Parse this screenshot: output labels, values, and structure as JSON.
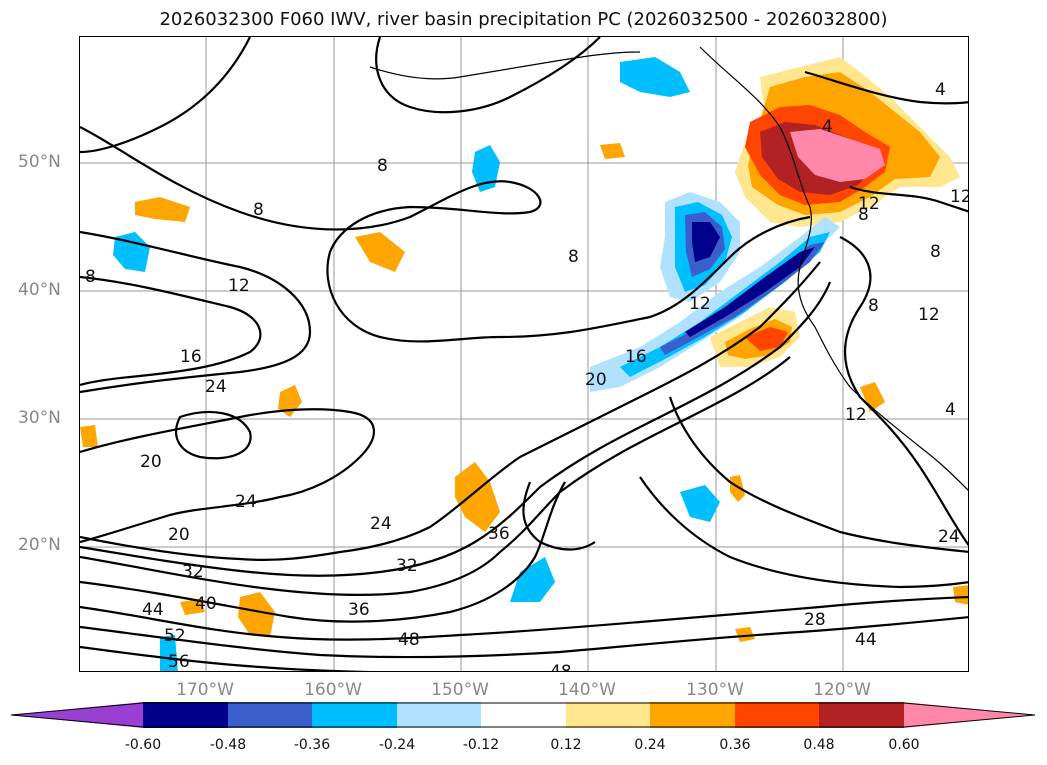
{
  "title": "2026032300 F060 IWV, river basin precipitation PC (2026032500 - 2026032800)",
  "latitude_ticks": [
    "50°N",
    "40°N",
    "30°N",
    "20°N"
  ],
  "longitude_ticks": [
    "170°W",
    "160°W",
    "150°W",
    "140°W",
    "130°W",
    "120°W"
  ],
  "colorbar": {
    "levels": [
      "-0.60",
      "-0.48",
      "-0.36",
      "-0.24",
      "-0.12",
      "0.12",
      "0.24",
      "0.36",
      "0.48",
      "0.60"
    ],
    "colors": [
      "#9a3fd4",
      "#00008b",
      "#3a5fcd",
      "#00bfff",
      "#b0e2ff",
      "#ffffff",
      "#ffe68f",
      "#ffa500",
      "#ff4500",
      "#b22222",
      "#ff88aa"
    ]
  },
  "contour_labels": {
    "l1": "4",
    "l2": "4",
    "l3": "8",
    "l4": "8",
    "l5": "8",
    "l6": "8",
    "l7": "8",
    "l8": "8",
    "l9": "12",
    "l10": "12",
    "l11": "12",
    "l12": "12",
    "l13": "12",
    "l14": "16",
    "l15": "16",
    "l16": "24",
    "l17": "20",
    "l18": "20",
    "l19": "24",
    "l20": "20",
    "l21": "24",
    "l22": "36",
    "l23": "32",
    "l24": "32",
    "l25": "40",
    "l26": "44",
    "l27": "36",
    "l28": "52",
    "l29": "56",
    "l30": "48",
    "l31": "48",
    "l32": "28",
    "l33": "44",
    "l34": "24",
    "l35": "8",
    "l36": "12",
    "l37": "4"
  }
}
